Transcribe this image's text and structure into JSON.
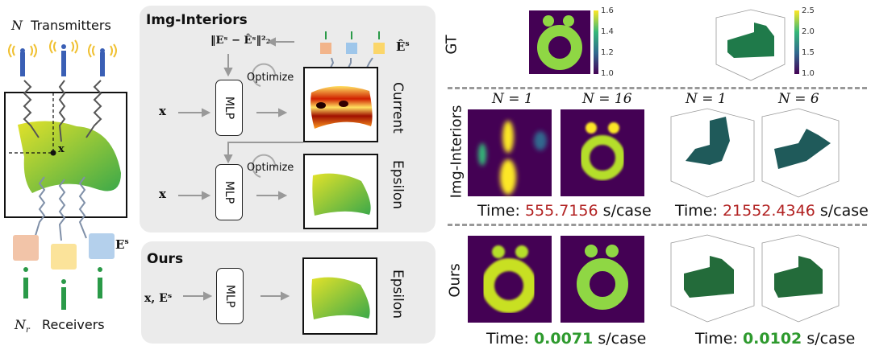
{
  "left": {
    "transmitters_symbol": "N",
    "transmitters_label": "Transmitters",
    "receivers_symbol": "N",
    "receivers_sub": "r",
    "receivers_label": "Receivers",
    "point_label": "x",
    "field_label": "E",
    "field_sup": "s"
  },
  "img_interiors": {
    "title": "Img-Interiors",
    "loss_label": "‖Eˢ − Êˢ‖²₂",
    "measured_label": "Ê",
    "measured_sup": "s",
    "optimize_label": "Optimize",
    "input_label": "x",
    "mlp_label": "MLP",
    "current_label": "Current",
    "epsilon_label": "Epsilon"
  },
  "ours": {
    "title": "Ours",
    "input_label": "x, Eˢ",
    "mlp_label": "MLP",
    "epsilon_label": "Epsilon"
  },
  "results": {
    "row_labels": [
      "GT",
      "Img-Interiors",
      "Ours"
    ],
    "colorbar_2d": [
      "1.6",
      "1.4",
      "1.2",
      "1.0"
    ],
    "colorbar_3d": [
      "2.5",
      "2.0",
      "1.5",
      "1.0"
    ],
    "titles_2d": [
      "N = 1",
      "N = 16"
    ],
    "titles_3d": [
      "N = 1",
      "N = 6"
    ],
    "time_prefix": "Time:",
    "time_suffix": "s/case",
    "img_time_2d": "555.7156",
    "img_time_3d": "21552.4346",
    "ours_time_2d": "0.0071",
    "ours_time_3d": "0.0102",
    "colors": {
      "slow": "#b22222",
      "fast": "#2e9a2e",
      "viridis_low": "#440154",
      "viridis_high": "#8fd744"
    }
  }
}
